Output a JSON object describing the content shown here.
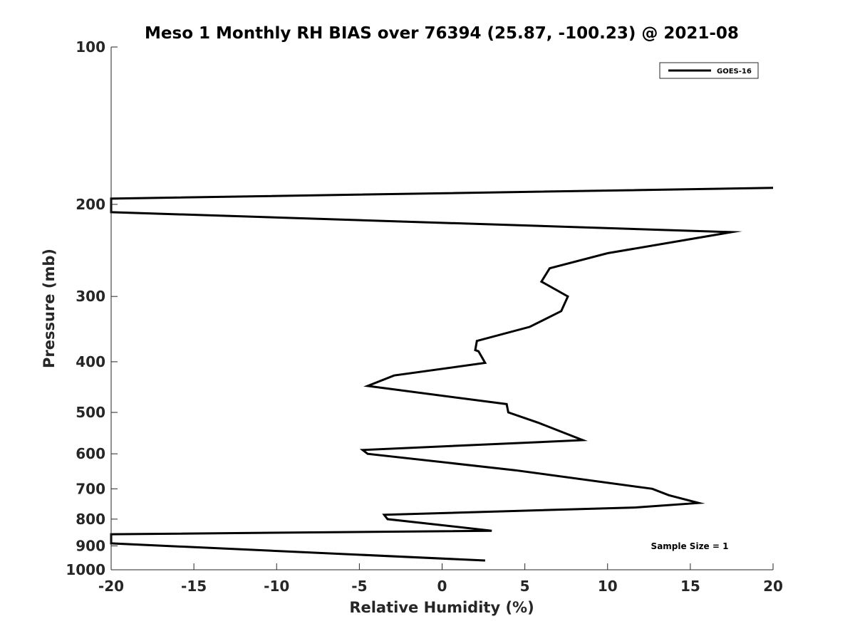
{
  "chart_data": {
    "type": "line",
    "title": "Meso 1 Monthly RH BIAS over 76394 (25.87, -100.23) @ 2021-08",
    "xlabel": "Relative Humidity (%)",
    "ylabel": "Pressure (mb)",
    "xlim": [
      -20,
      20
    ],
    "ylim": [
      1000,
      100
    ],
    "yscale": "log",
    "xticks": [
      -20,
      -15,
      -10,
      -5,
      0,
      5,
      10,
      15,
      20
    ],
    "yticks": [
      100,
      200,
      300,
      400,
      500,
      600,
      700,
      800,
      900,
      1000
    ],
    "legend": {
      "position": "top-right"
    },
    "grid": false,
    "annotation": "Sample Size = 1",
    "series": [
      {
        "name": "GOES-16",
        "color": "#000000",
        "points": [
          {
            "x": 2.6,
            "p": 960
          },
          {
            "x": -20.0,
            "p": 890
          },
          {
            "x": -20.0,
            "p": 855
          },
          {
            "x": 3.0,
            "p": 842
          },
          {
            "x": -3.3,
            "p": 800
          },
          {
            "x": -3.5,
            "p": 785
          },
          {
            "x": 11.7,
            "p": 760
          },
          {
            "x": 15.5,
            "p": 745
          },
          {
            "x": 13.7,
            "p": 720
          },
          {
            "x": 12.7,
            "p": 700
          },
          {
            "x": 4.4,
            "p": 645
          },
          {
            "x": -4.5,
            "p": 600
          },
          {
            "x": -4.8,
            "p": 590
          },
          {
            "x": 8.5,
            "p": 565
          },
          {
            "x": 5.8,
            "p": 523
          },
          {
            "x": 4.0,
            "p": 500
          },
          {
            "x": 3.9,
            "p": 482
          },
          {
            "x": -4.5,
            "p": 445
          },
          {
            "x": -2.9,
            "p": 425
          },
          {
            "x": 2.6,
            "p": 402
          },
          {
            "x": 2.2,
            "p": 382
          },
          {
            "x": 2.0,
            "p": 380
          },
          {
            "x": 2.1,
            "p": 365
          },
          {
            "x": 5.3,
            "p": 343
          },
          {
            "x": 7.2,
            "p": 320
          },
          {
            "x": 7.6,
            "p": 300
          },
          {
            "x": 6.0,
            "p": 281
          },
          {
            "x": 6.5,
            "p": 265
          },
          {
            "x": 10.0,
            "p": 248
          },
          {
            "x": 17.5,
            "p": 226
          },
          {
            "x": -20.0,
            "p": 207
          },
          {
            "x": -20.0,
            "p": 195
          },
          {
            "x": 20.0,
            "p": 186
          }
        ]
      }
    ]
  }
}
